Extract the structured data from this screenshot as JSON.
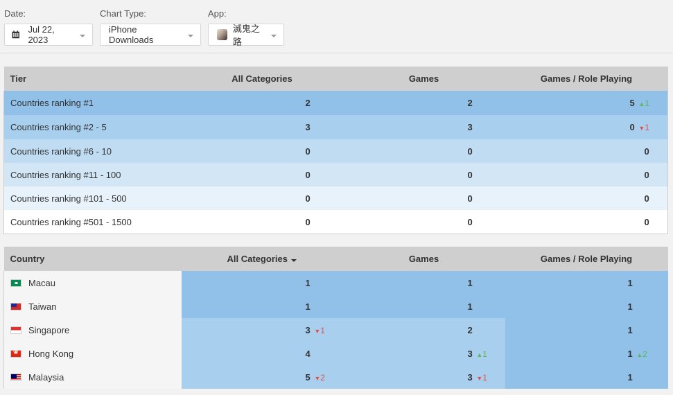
{
  "filters": {
    "date_label": "Date:",
    "date_value": "Jul 22, 2023",
    "chart_type_label": "Chart Type:",
    "chart_type_value": "iPhone Downloads",
    "app_label": "App:",
    "app_value": "滅鬼之路"
  },
  "tier_table": {
    "headers": [
      "Tier",
      "All Categories",
      "Games",
      "Games / Role Playing"
    ],
    "rows": [
      {
        "tier": "Countries ranking #1",
        "all": "2",
        "games": "2",
        "rpg": "5",
        "rpg_change": "1",
        "rpg_dir": "up"
      },
      {
        "tier": "Countries ranking #2 - 5",
        "all": "3",
        "games": "3",
        "rpg": "0",
        "rpg_change": "1",
        "rpg_dir": "down"
      },
      {
        "tier": "Countries ranking #6 - 10",
        "all": "0",
        "games": "0",
        "rpg": "0"
      },
      {
        "tier": "Countries ranking #11 - 100",
        "all": "0",
        "games": "0",
        "rpg": "0"
      },
      {
        "tier": "Countries ranking #101 - 500",
        "all": "0",
        "games": "0",
        "rpg": "0"
      },
      {
        "tier": "Countries ranking #501 - 1500",
        "all": "0",
        "games": "0",
        "rpg": "0"
      }
    ]
  },
  "country_table": {
    "headers": [
      "Country",
      "All Categories",
      "Games",
      "Games / Role Playing"
    ],
    "rows": [
      {
        "country": "Macau",
        "flag": "macau-flag-icon",
        "all": "1",
        "games": "1",
        "rpg": "1"
      },
      {
        "country": "Taiwan",
        "flag": "taiwan-flag-icon",
        "all": "1",
        "games": "1",
        "rpg": "1"
      },
      {
        "country": "Singapore",
        "flag": "singapore-flag-icon",
        "all": "3",
        "all_change": "1",
        "all_dir": "down",
        "games": "2",
        "rpg": "1"
      },
      {
        "country": "Hong Kong",
        "flag": "hong-kong-flag-icon",
        "all": "4",
        "games": "3",
        "games_change": "1",
        "games_dir": "up",
        "rpg": "1",
        "rpg_change": "2",
        "rpg_dir": "up"
      },
      {
        "country": "Malaysia",
        "flag": "malaysia-flag-icon",
        "all": "5",
        "all_change": "2",
        "all_dir": "down",
        "games": "3",
        "games_change": "1",
        "games_dir": "down",
        "rpg": "1"
      }
    ]
  },
  "colors": {
    "heat_dark": "#91c1e9",
    "heat_mid": "#a9cfef",
    "up": "#5cb85c",
    "down": "#d9534f"
  }
}
